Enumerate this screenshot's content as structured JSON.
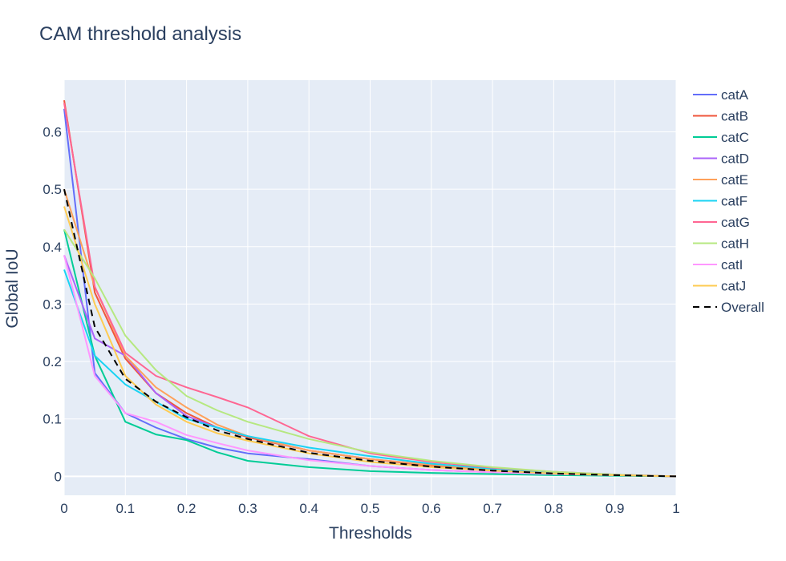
{
  "chart_data": {
    "type": "line",
    "title": "CAM threshold analysis",
    "xlabel": "Thresholds",
    "ylabel": "Global IoU",
    "xlim": [
      0,
      1
    ],
    "ylim": [
      -0.033,
      0.69
    ],
    "xticks": [
      0,
      0.1,
      0.2,
      0.3,
      0.4,
      0.5,
      0.6,
      0.7,
      0.8,
      0.9,
      1
    ],
    "xtick_labels": [
      "0",
      "0.1",
      "0.2",
      "0.3",
      "0.4",
      "0.5",
      "0.6",
      "0.7",
      "0.8",
      "0.9",
      "1"
    ],
    "yticks": [
      0,
      0.1,
      0.2,
      0.3,
      0.4,
      0.5,
      0.6
    ],
    "ytick_labels": [
      "0",
      "0.1",
      "0.2",
      "0.3",
      "0.4",
      "0.5",
      "0.6"
    ],
    "grid": true,
    "legend_position": "right",
    "x": [
      0,
      0.05,
      0.1,
      0.15,
      0.2,
      0.25,
      0.3,
      0.4,
      0.5,
      0.6,
      0.7,
      0.8,
      0.9,
      1
    ],
    "series": [
      {
        "name": "catA",
        "color": "#636efa",
        "dash": "solid",
        "values": [
          0.64,
          0.18,
          0.11,
          0.085,
          0.065,
          0.05,
          0.04,
          0.03,
          0.018,
          0.011,
          0.007,
          0.004,
          0.002,
          0
        ]
      },
      {
        "name": "catB",
        "color": "#ef553b",
        "dash": "solid",
        "values": [
          0.655,
          0.32,
          0.205,
          0.145,
          0.11,
          0.085,
          0.068,
          0.045,
          0.03,
          0.018,
          0.01,
          0.005,
          0.002,
          0
        ]
      },
      {
        "name": "catC",
        "color": "#00cc96",
        "dash": "solid",
        "values": [
          0.43,
          0.21,
          0.095,
          0.073,
          0.063,
          0.042,
          0.027,
          0.016,
          0.009,
          0.006,
          0.004,
          0.002,
          0.001,
          0
        ]
      },
      {
        "name": "catD",
        "color": "#ab63fa",
        "dash": "solid",
        "values": [
          0.385,
          0.24,
          0.21,
          0.145,
          0.105,
          0.085,
          0.07,
          0.045,
          0.03,
          0.02,
          0.012,
          0.006,
          0.003,
          0
        ]
      },
      {
        "name": "catE",
        "color": "#ffa15a",
        "dash": "solid",
        "values": [
          0.5,
          0.33,
          0.21,
          0.155,
          0.12,
          0.09,
          0.07,
          0.045,
          0.03,
          0.02,
          0.012,
          0.006,
          0.003,
          0
        ]
      },
      {
        "name": "catF",
        "color": "#19d3f3",
        "dash": "solid",
        "values": [
          0.36,
          0.21,
          0.16,
          0.13,
          0.1,
          0.085,
          0.07,
          0.05,
          0.035,
          0.022,
          0.013,
          0.007,
          0.003,
          0
        ]
      },
      {
        "name": "catG",
        "color": "#ff6692",
        "dash": "solid",
        "values": [
          0.65,
          0.33,
          0.215,
          0.175,
          0.155,
          0.138,
          0.12,
          0.07,
          0.04,
          0.025,
          0.015,
          0.008,
          0.003,
          0
        ]
      },
      {
        "name": "catH",
        "color": "#b6e880",
        "dash": "solid",
        "values": [
          0.43,
          0.345,
          0.245,
          0.185,
          0.14,
          0.115,
          0.095,
          0.065,
          0.042,
          0.027,
          0.016,
          0.008,
          0.003,
          0
        ]
      },
      {
        "name": "catI",
        "color": "#ff97ff",
        "dash": "solid",
        "values": [
          0.385,
          0.175,
          0.11,
          0.095,
          0.072,
          0.058,
          0.045,
          0.028,
          0.018,
          0.011,
          0.007,
          0.004,
          0.002,
          0
        ]
      },
      {
        "name": "catJ",
        "color": "#fecb52",
        "dash": "solid",
        "values": [
          0.47,
          0.3,
          0.175,
          0.125,
          0.095,
          0.075,
          0.062,
          0.04,
          0.025,
          0.016,
          0.01,
          0.005,
          0.002,
          0
        ]
      },
      {
        "name": "Overall",
        "color": "#000000",
        "dash": "dash",
        "values": [
          0.5,
          0.26,
          0.17,
          0.13,
          0.103,
          0.08,
          0.065,
          0.041,
          0.027,
          0.017,
          0.01,
          0.005,
          0.002,
          0
        ]
      }
    ]
  }
}
